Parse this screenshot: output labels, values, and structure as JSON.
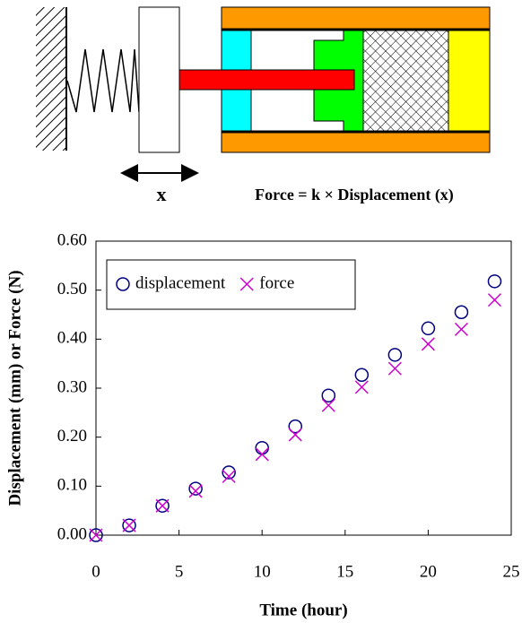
{
  "chart_data": {
    "type": "scatter",
    "annotations": [
      "x",
      "Force = k × Displacement (x)"
    ],
    "x_label": "Time (hour)",
    "y_label": "Displacement (mm) or Force (N)",
    "x": [
      0,
      2,
      4,
      6,
      8,
      10,
      12,
      14,
      16,
      18,
      20,
      22,
      24
    ],
    "series": [
      {
        "name": "displacement",
        "color": "#000080",
        "marker": "circle",
        "values": [
          0.0,
          0.02,
          0.06,
          0.095,
          0.128,
          0.178,
          0.222,
          0.285,
          0.327,
          0.368,
          0.422,
          0.455,
          0.518
        ]
      },
      {
        "name": "force",
        "color": "#cc00cc",
        "marker": "cross",
        "values": [
          0.0,
          0.02,
          0.06,
          0.09,
          0.12,
          0.165,
          0.205,
          0.265,
          0.302,
          0.34,
          0.39,
          0.42,
          0.48
        ]
      }
    ],
    "xlim": [
      0,
      25
    ],
    "xticks": [
      0,
      5,
      10,
      15,
      20,
      25
    ],
    "ylim": [
      0,
      0.6
    ],
    "yticks": [
      {
        "value": 0,
        "label": "0.00"
      },
      {
        "value": 0.1,
        "label": "0.10"
      },
      {
        "value": 0.2,
        "label": "0.20"
      },
      {
        "value": 0.3,
        "label": "0.30"
      },
      {
        "value": 0.4,
        "label": "0.40"
      },
      {
        "value": 0.5,
        "label": "0.50"
      },
      {
        "value": 0.6,
        "label": "0.60"
      }
    ],
    "legend": "upper-left",
    "grid": false
  }
}
